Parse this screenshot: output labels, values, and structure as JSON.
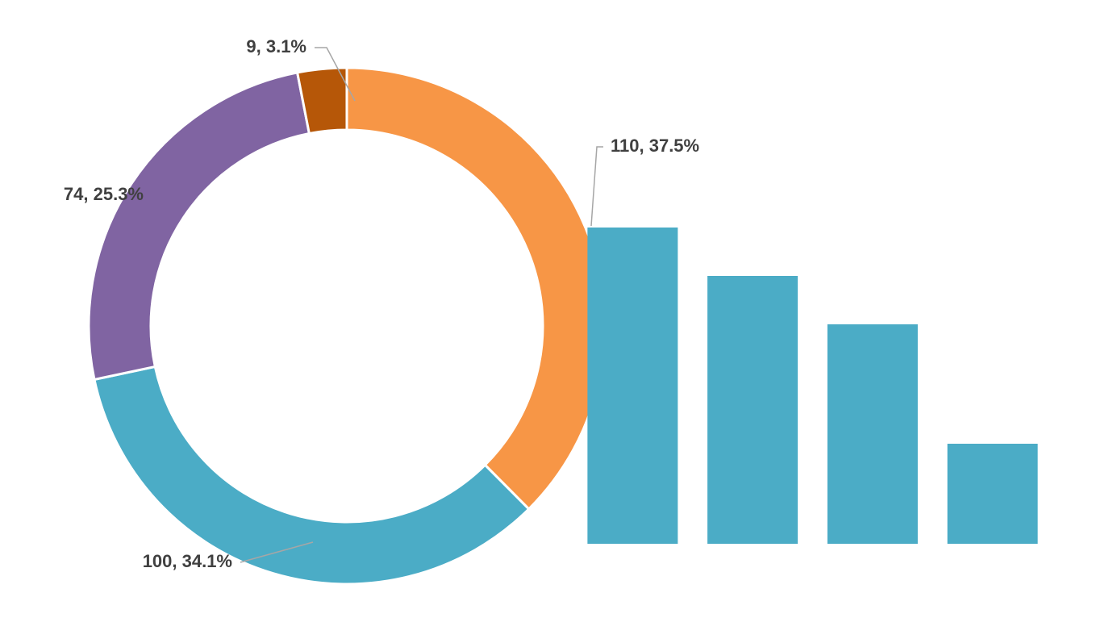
{
  "chart_data": [
    {
      "type": "pie",
      "values": [
        110,
        100,
        74,
        9
      ],
      "value_labels": [
        "110, 37.5%",
        "100, 34.1%",
        "74, 25.3%",
        "9, 3.1%"
      ],
      "colors": [
        "#f79646",
        "#4bacc6",
        "#8064a2",
        "#b65708"
      ],
      "donut": true
    },
    {
      "type": "bar",
      "categories": [
        null,
        null,
        null,
        null
      ],
      "values": [
        98,
        83,
        68,
        31
      ],
      "color": "#4bacc6",
      "ylim": [
        0,
        100
      ]
    }
  ]
}
